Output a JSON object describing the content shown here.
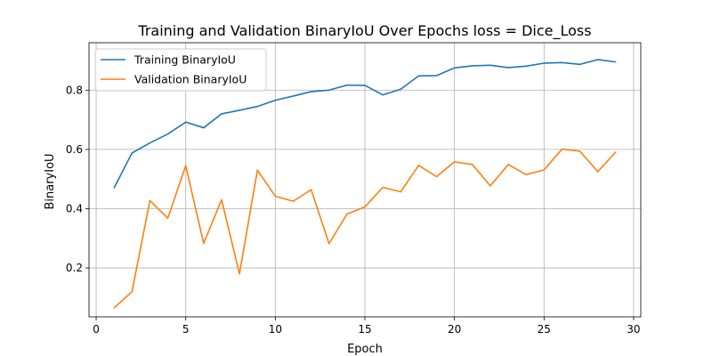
{
  "chart_data": {
    "type": "line",
    "title": "Training and Validation BinaryIoU Over Epochs loss = Dice_Loss",
    "xlabel": "Epoch",
    "ylabel": "BinaryIoU",
    "xlim": [
      -0.4,
      30.4
    ],
    "ylim": [
      0.035,
      0.96
    ],
    "xticks": [
      0,
      5,
      10,
      15,
      20,
      25,
      30
    ],
    "yticks": [
      0.2,
      0.4,
      0.6,
      0.8
    ],
    "grid": true,
    "legend_position": "upper left",
    "x": [
      1,
      2,
      3,
      4,
      5,
      6,
      7,
      8,
      9,
      10,
      11,
      12,
      13,
      14,
      15,
      16,
      17,
      18,
      19,
      20,
      21,
      22,
      23,
      24,
      25,
      26,
      27,
      28,
      29
    ],
    "series": [
      {
        "name": "Training BinaryIoU",
        "color": "#1f77b4",
        "values": [
          0.47,
          0.588,
          0.622,
          0.652,
          0.692,
          0.673,
          0.72,
          0.732,
          0.745,
          0.766,
          0.78,
          0.795,
          0.8,
          0.817,
          0.816,
          0.784,
          0.803,
          0.848,
          0.849,
          0.875,
          0.882,
          0.884,
          0.876,
          0.881,
          0.891,
          0.893,
          0.887,
          0.903,
          0.895
        ]
      },
      {
        "name": "Validation BinaryIoU",
        "color": "#ff7f0e",
        "values": [
          0.065,
          0.12,
          0.427,
          0.368,
          0.545,
          0.283,
          0.43,
          0.18,
          0.53,
          0.442,
          0.425,
          0.464,
          0.282,
          0.382,
          0.406,
          0.472,
          0.457,
          0.546,
          0.508,
          0.558,
          0.549,
          0.477,
          0.549,
          0.515,
          0.531,
          0.601,
          0.594,
          0.525,
          0.591
        ]
      }
    ]
  }
}
